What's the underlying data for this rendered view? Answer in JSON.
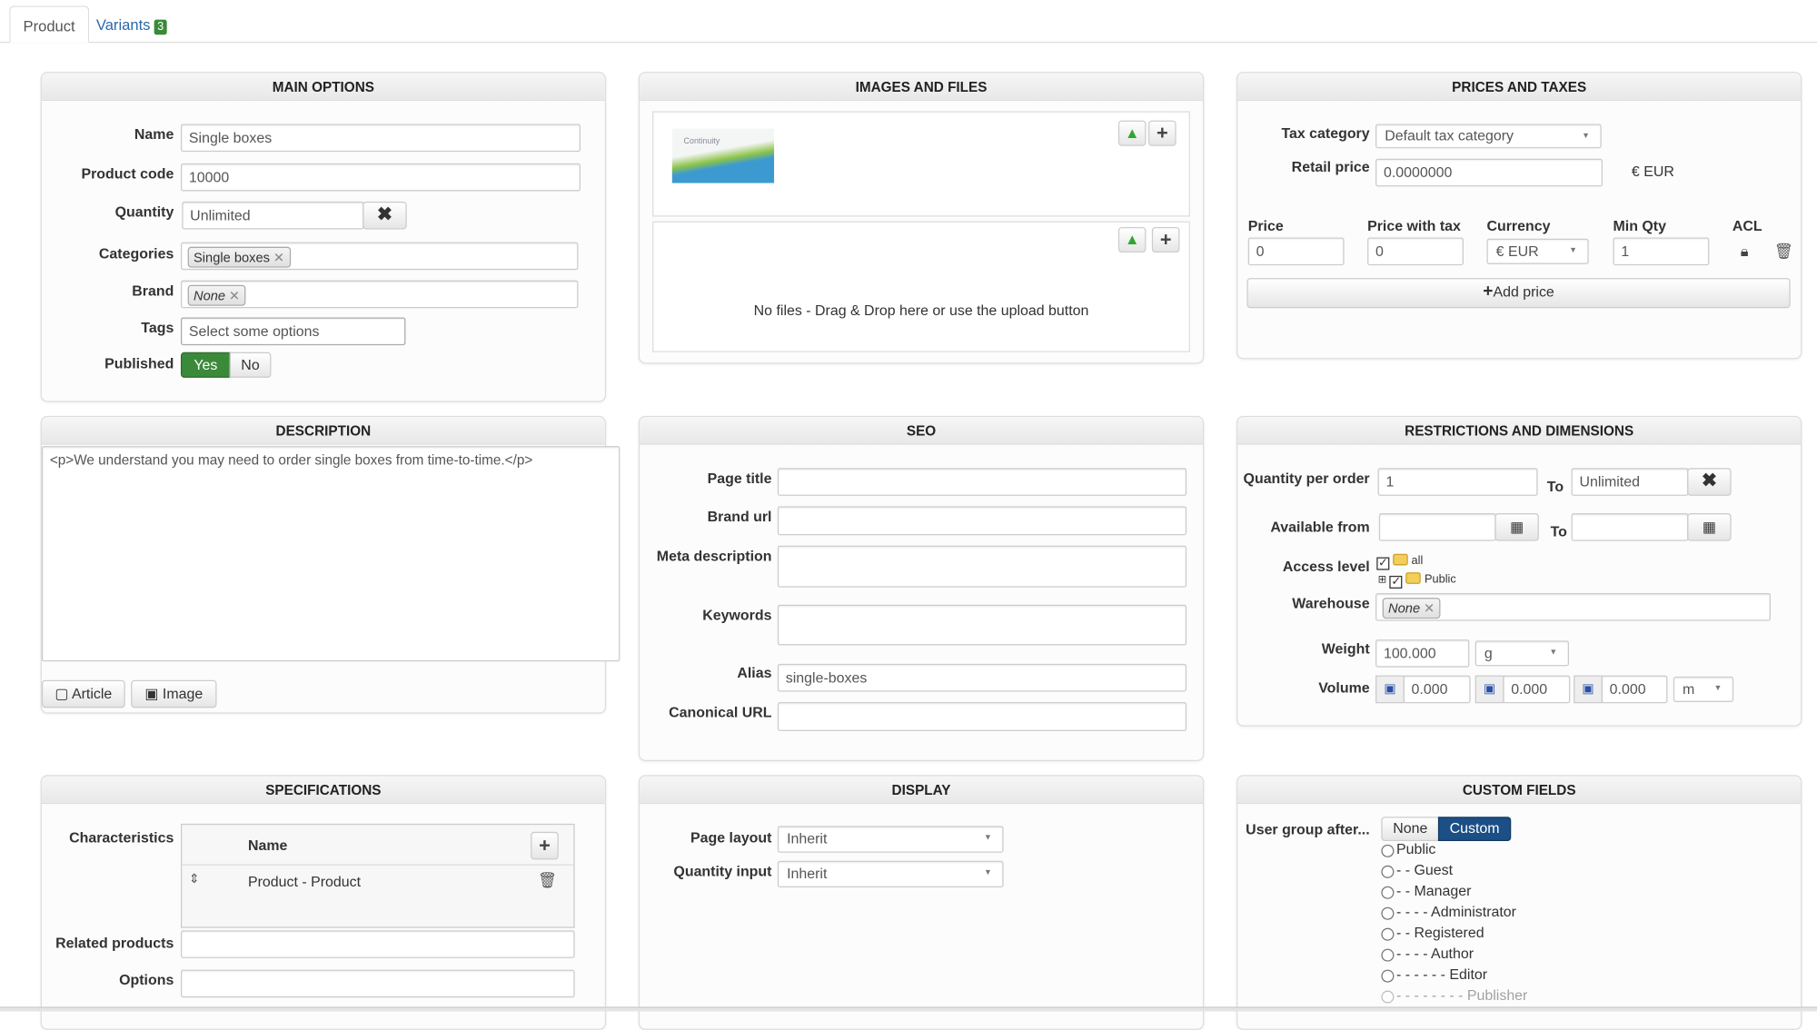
{
  "tabs": {
    "product": "Product",
    "variants": "Variants",
    "variants_count": "3"
  },
  "main_options": {
    "title": "MAIN OPTIONS",
    "name_label": "Name",
    "name_value": "Single boxes",
    "code_label": "Product code",
    "code_value": "10000",
    "quantity_label": "Quantity",
    "quantity_value": "Unlimited",
    "categories_label": "Categories",
    "category_tag": "Single boxes",
    "brand_label": "Brand",
    "brand_tag": "None",
    "tags_label": "Tags",
    "tags_placeholder": "Select some options",
    "published_label": "Published",
    "yes": "Yes",
    "no": "No",
    "published": "Yes"
  },
  "images": {
    "title": "IMAGES AND FILES",
    "thumb_text": "Continuity",
    "no_files": "No files - Drag & Drop here or use the upload button"
  },
  "prices": {
    "title": "PRICES AND TAXES",
    "tax_label": "Tax category",
    "tax_value": "Default tax category",
    "retail_label": "Retail price",
    "retail_value": "0.0000000",
    "retail_currency": "€ EUR",
    "col_price": "Price",
    "col_price_tax": "Price with tax",
    "col_currency": "Currency",
    "col_min_qty": "Min Qty",
    "col_acl": "ACL",
    "price": "0",
    "price_tax": "0",
    "currency": "€ EUR",
    "min_qty": "1",
    "add_price": "Add price"
  },
  "description": {
    "title": "DESCRIPTION",
    "content": "<p>We understand you may need to order single boxes from time-to-time.</p>",
    "article_btn": "Article",
    "image_btn": "Image"
  },
  "seo": {
    "title": "SEO",
    "page_title_label": "Page title",
    "brand_url_label": "Brand url",
    "meta_label": "Meta description",
    "keywords_label": "Keywords",
    "alias_label": "Alias",
    "alias_value": "single-boxes",
    "canonical_label": "Canonical URL"
  },
  "restrictions": {
    "title": "RESTRICTIONS AND DIMENSIONS",
    "qty_label": "Quantity per order",
    "qty_from": "1",
    "to_label": "To",
    "qty_to": "Unlimited",
    "available_label": "Available from",
    "access_label": "Access level",
    "access_all": "all",
    "access_public": "Public",
    "warehouse_label": "Warehouse",
    "warehouse_tag": "None",
    "weight_label": "Weight",
    "weight_value": "100.000",
    "weight_unit": "g",
    "volume_label": "Volume",
    "vol1": "0.000",
    "vol2": "0.000",
    "vol3": "0.000",
    "volume_unit": "m"
  },
  "specifications": {
    "title": "SPECIFICATIONS",
    "characteristics_label": "Characteristics",
    "col_name": "Name",
    "row_name": "Product - Product",
    "related_label": "Related products",
    "options_label": "Options"
  },
  "display": {
    "title": "DISPLAY",
    "page_layout_label": "Page layout",
    "page_layout_value": "Inherit",
    "qty_input_label": "Quantity input",
    "qty_input_value": "Inherit"
  },
  "custom_fields": {
    "title": "CUSTOM FIELDS",
    "user_group_label": "User group after...",
    "none": "None",
    "custom": "Custom",
    "selected": "Custom",
    "groups": [
      "Public",
      "- - Guest",
      "- - Manager",
      "- - - - Administrator",
      "- - Registered",
      "- - - - Author",
      "- - - - - - Editor",
      "- - - - - - - - Publisher"
    ]
  },
  "colors": {
    "accent_green": "#3a8a3a",
    "custom_active": "#1b4f85",
    "link": "#2a69a8"
  }
}
